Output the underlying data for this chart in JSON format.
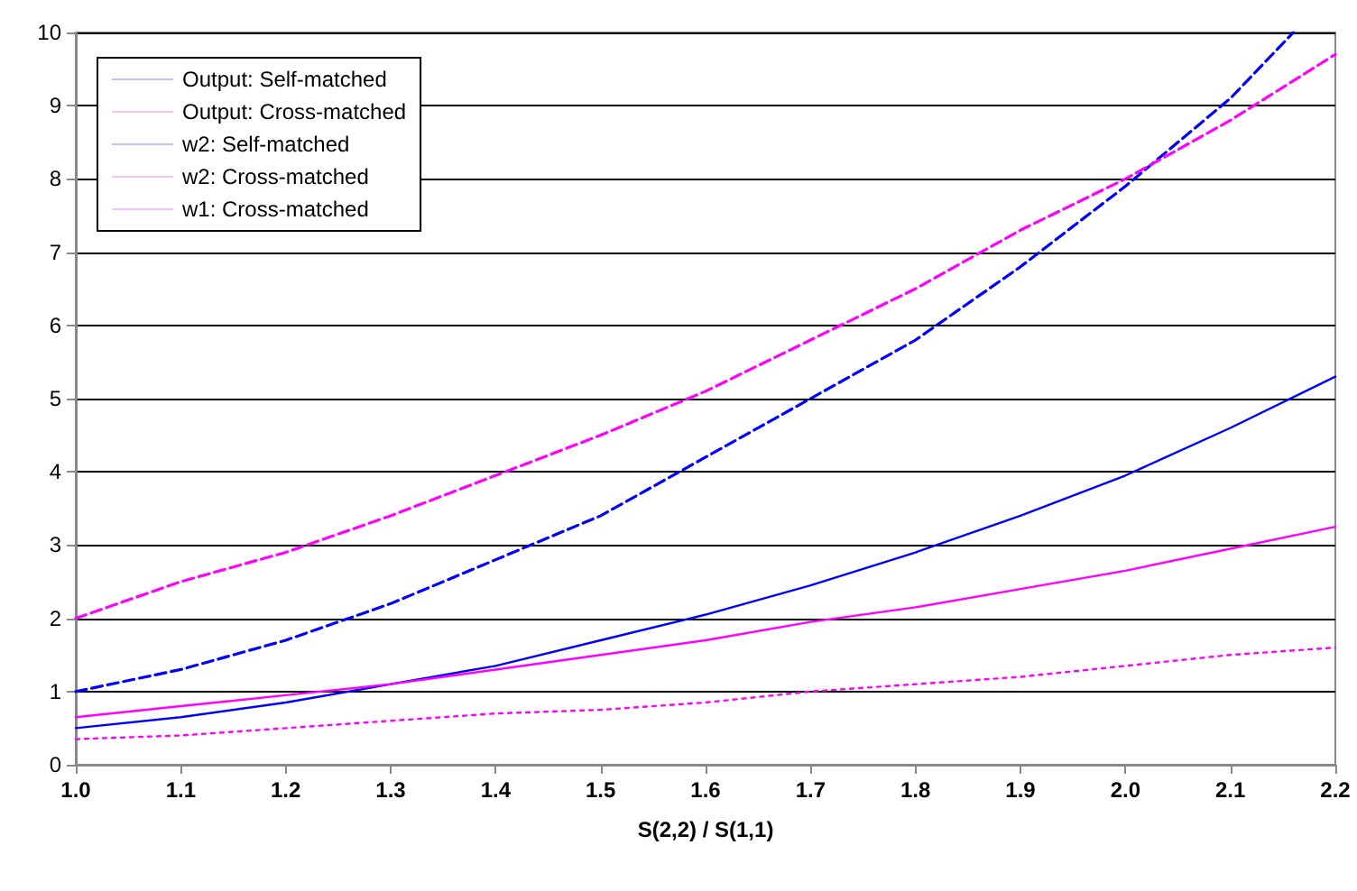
{
  "chart_data": {
    "type": "line",
    "xlabel": "S(2,2) / S(1,1)",
    "x": [
      1.0,
      1.1,
      1.2,
      1.3,
      1.4,
      1.5,
      1.6,
      1.7,
      1.8,
      1.9,
      2.0,
      2.1,
      2.2
    ],
    "series": [
      {
        "name": "Output: Self-matched",
        "color": "#0000ff",
        "line_style": "dashed",
        "x": [
          1.0,
          1.1,
          1.2,
          1.3,
          1.4,
          1.5,
          1.6,
          1.7,
          1.8,
          1.9,
          2.0,
          2.1,
          2.16
        ],
        "values": [
          1.0,
          1.3,
          1.7,
          2.2,
          2.8,
          3.4,
          4.2,
          5.0,
          5.8,
          6.8,
          7.9,
          9.1,
          10.0
        ]
      },
      {
        "name": "Output: Cross-matched",
        "color": "#ff00ff",
        "line_style": "dashed",
        "values": [
          2.0,
          2.5,
          2.9,
          3.4,
          3.95,
          4.5,
          5.1,
          5.8,
          6.5,
          7.3,
          8.0,
          8.8,
          9.7
        ]
      },
      {
        "name": "w2: Self-matched",
        "color": "#0000ff",
        "line_style": "solid",
        "values": [
          0.5,
          0.65,
          0.85,
          1.1,
          1.35,
          1.7,
          2.05,
          2.45,
          2.9,
          3.4,
          3.95,
          4.6,
          5.3
        ]
      },
      {
        "name": "w2: Cross-matched",
        "color": "#ff00ff",
        "line_style": "solid",
        "values": [
          0.65,
          0.8,
          0.95,
          1.1,
          1.3,
          1.5,
          1.7,
          1.95,
          2.15,
          2.4,
          2.65,
          2.95,
          3.25
        ]
      },
      {
        "name": "w1: Cross-matched",
        "color": "#ff00ff",
        "line_style": "dotted",
        "values": [
          0.35,
          0.4,
          0.5,
          0.6,
          0.7,
          0.75,
          0.85,
          1.0,
          1.1,
          1.2,
          1.35,
          1.5,
          1.6
        ]
      }
    ],
    "xlim": [
      1.0,
      2.2
    ],
    "xticks": [
      {
        "value": 1.0,
        "label": "1.0"
      },
      {
        "value": 1.1,
        "label": "1.1"
      },
      {
        "value": 1.2,
        "label": "1.2"
      },
      {
        "value": 1.3,
        "label": "1.3"
      },
      {
        "value": 1.4,
        "label": "1.4"
      },
      {
        "value": 1.5,
        "label": "1.5"
      },
      {
        "value": 1.6,
        "label": "1.6"
      },
      {
        "value": 1.7,
        "label": "1.7"
      },
      {
        "value": 1.8,
        "label": "1.8"
      },
      {
        "value": 1.9,
        "label": "1.9"
      },
      {
        "value": 2.0,
        "label": "2.0"
      },
      {
        "value": 2.1,
        "label": "2.1"
      },
      {
        "value": 2.2,
        "label": "2.2"
      }
    ],
    "ylim": [
      0,
      10
    ],
    "yticks": [
      0,
      1,
      2,
      3,
      4,
      5,
      6,
      7,
      8,
      9,
      10
    ],
    "grid": "y",
    "legend": "top left",
    "marker": "none"
  }
}
